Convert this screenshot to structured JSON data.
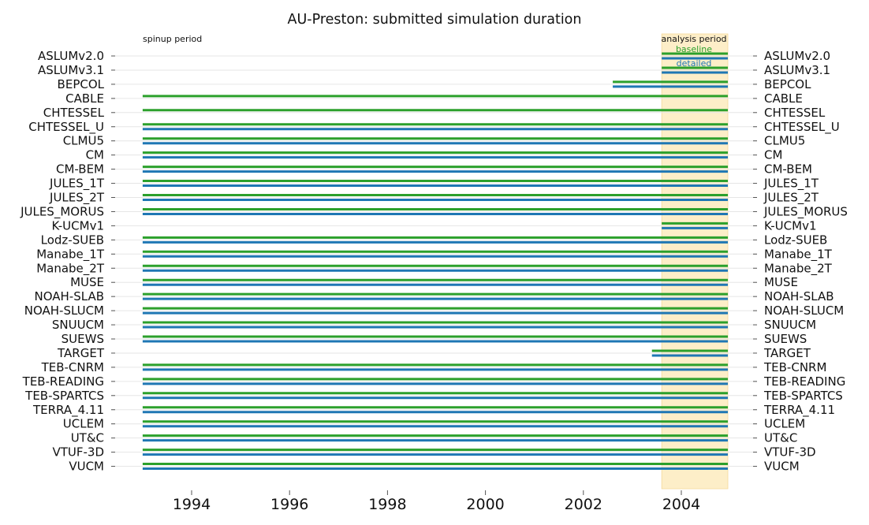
{
  "chart_data": {
    "type": "bar",
    "title": "AU-Preston: submitted simulation duration",
    "xlabel": "",
    "ylabel": "",
    "xlim": [
      1992.5,
      2005.5
    ],
    "x_ticks": [
      "1994",
      "1996",
      "1998",
      "2000",
      "2002",
      "2004"
    ],
    "grid": "horizontal",
    "annotations": {
      "spinup": "spinup period",
      "analysis": "analysis period"
    },
    "analysis_period": [
      2003.6,
      2004.95
    ],
    "series": [
      {
        "name": "baseline",
        "color": "#2ca02c"
      },
      {
        "name": "detailed",
        "color": "#1f77b4"
      }
    ],
    "models": [
      {
        "name": "ASLUMv2.0",
        "baseline": [
          2003.6,
          2004.95
        ],
        "detailed": [
          2003.6,
          2004.95
        ]
      },
      {
        "name": "ASLUMv3.1",
        "baseline": [
          2003.6,
          2004.95
        ],
        "detailed": [
          2003.6,
          2004.95
        ]
      },
      {
        "name": "BEPCOL",
        "baseline": [
          2002.6,
          2004.95
        ],
        "detailed": [
          2002.6,
          2004.95
        ]
      },
      {
        "name": "CABLE",
        "baseline": [
          1993.0,
          2004.95
        ],
        "detailed": null
      },
      {
        "name": "CHTESSEL",
        "baseline": [
          1993.0,
          2004.95
        ],
        "detailed": null
      },
      {
        "name": "CHTESSEL_U",
        "baseline": [
          1993.0,
          2004.95
        ],
        "detailed": [
          1993.0,
          2004.95
        ]
      },
      {
        "name": "CLMU5",
        "baseline": [
          1993.0,
          2004.95
        ],
        "detailed": [
          1993.0,
          2004.95
        ]
      },
      {
        "name": "CM",
        "baseline": [
          1993.0,
          2004.95
        ],
        "detailed": [
          1993.0,
          2004.95
        ]
      },
      {
        "name": "CM-BEM",
        "baseline": [
          1993.0,
          2004.95
        ],
        "detailed": [
          1993.0,
          2004.95
        ]
      },
      {
        "name": "JULES_1T",
        "baseline": [
          1993.0,
          2004.95
        ],
        "detailed": [
          1993.0,
          2004.95
        ]
      },
      {
        "name": "JULES_2T",
        "baseline": [
          1993.0,
          2004.95
        ],
        "detailed": [
          1993.0,
          2004.95
        ]
      },
      {
        "name": "JULES_MORUS",
        "baseline": [
          1993.0,
          2004.95
        ],
        "detailed": [
          1993.0,
          2004.95
        ]
      },
      {
        "name": "K-UCMv1",
        "baseline": [
          2003.6,
          2004.95
        ],
        "detailed": [
          2003.6,
          2004.95
        ]
      },
      {
        "name": "Lodz-SUEB",
        "baseline": [
          1993.0,
          2004.95
        ],
        "detailed": [
          1993.0,
          2004.95
        ]
      },
      {
        "name": "Manabe_1T",
        "baseline": [
          1993.0,
          2004.95
        ],
        "detailed": [
          1993.0,
          2004.95
        ]
      },
      {
        "name": "Manabe_2T",
        "baseline": [
          1993.0,
          2004.95
        ],
        "detailed": [
          1993.0,
          2004.95
        ]
      },
      {
        "name": "MUSE",
        "baseline": [
          1993.0,
          2004.95
        ],
        "detailed": [
          1993.0,
          2004.95
        ]
      },
      {
        "name": "NOAH-SLAB",
        "baseline": [
          1993.0,
          2004.95
        ],
        "detailed": [
          1993.0,
          2004.95
        ]
      },
      {
        "name": "NOAH-SLUCM",
        "baseline": [
          1993.0,
          2004.95
        ],
        "detailed": [
          1993.0,
          2004.95
        ]
      },
      {
        "name": "SNUUCM",
        "baseline": [
          1993.0,
          2004.95
        ],
        "detailed": [
          1993.0,
          2004.95
        ]
      },
      {
        "name": "SUEWS",
        "baseline": [
          1993.0,
          2004.95
        ],
        "detailed": [
          1993.0,
          2004.95
        ]
      },
      {
        "name": "TARGET",
        "baseline": [
          2003.4,
          2004.95
        ],
        "detailed": [
          2003.4,
          2004.95
        ]
      },
      {
        "name": "TEB-CNRM",
        "baseline": [
          1993.0,
          2004.95
        ],
        "detailed": [
          1993.0,
          2004.95
        ]
      },
      {
        "name": "TEB-READING",
        "baseline": [
          1993.0,
          2004.95
        ],
        "detailed": [
          1993.0,
          2004.95
        ]
      },
      {
        "name": "TEB-SPARTCS",
        "baseline": [
          1993.0,
          2004.95
        ],
        "detailed": [
          1993.0,
          2004.95
        ]
      },
      {
        "name": "TERRA_4.11",
        "baseline": [
          1993.0,
          2004.95
        ],
        "detailed": [
          1993.0,
          2004.95
        ]
      },
      {
        "name": "UCLEM",
        "baseline": [
          1993.0,
          2004.95
        ],
        "detailed": [
          1993.0,
          2004.95
        ]
      },
      {
        "name": "UT&C",
        "baseline": [
          1993.0,
          2004.95
        ],
        "detailed": [
          1993.0,
          2004.95
        ]
      },
      {
        "name": "VTUF-3D",
        "baseline": [
          1993.0,
          2004.95
        ],
        "detailed": [
          1993.0,
          2004.95
        ]
      },
      {
        "name": "VUCM",
        "baseline": [
          1993.0,
          2004.95
        ],
        "detailed": [
          1993.0,
          2004.95
        ]
      }
    ]
  }
}
